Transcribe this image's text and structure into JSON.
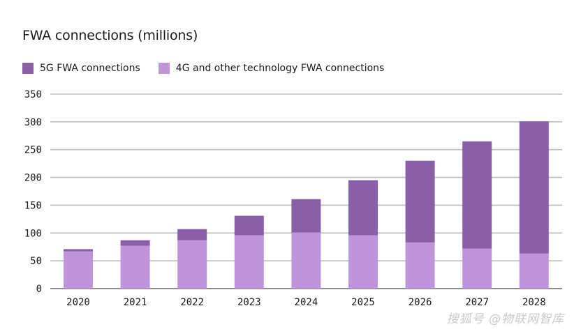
{
  "chart_data": {
    "type": "bar",
    "stacked": true,
    "title": "FWA connections (millions)",
    "xlabel": "",
    "ylabel": "",
    "ylim": [
      0,
      350
    ],
    "yticks": [
      0,
      50,
      100,
      150,
      200,
      250,
      300,
      350
    ],
    "grid": true,
    "legend_position": "top-left",
    "categories": [
      "2020",
      "2021",
      "2022",
      "2023",
      "2024",
      "2025",
      "2026",
      "2027",
      "2028"
    ],
    "series": [
      {
        "name": "4G and other technology FWA connections",
        "color": "#bf94da",
        "values": [
          67,
          77,
          87,
          96,
          101,
          96,
          83,
          72,
          63
        ]
      },
      {
        "name": "5G FWA connections",
        "color": "#8a5fa8",
        "values": [
          4,
          10,
          20,
          35,
          60,
          99,
          147,
          193,
          238
        ]
      }
    ],
    "totals": [
      71,
      87,
      107,
      131,
      161,
      195,
      230,
      265,
      301
    ]
  },
  "legend": {
    "items": [
      {
        "label": "5G FWA connections",
        "color": "#8a5fa8"
      },
      {
        "label": "4G and other technology FWA connections",
        "color": "#bf94da"
      }
    ]
  },
  "watermark": "搜狐号 @物联网智库"
}
